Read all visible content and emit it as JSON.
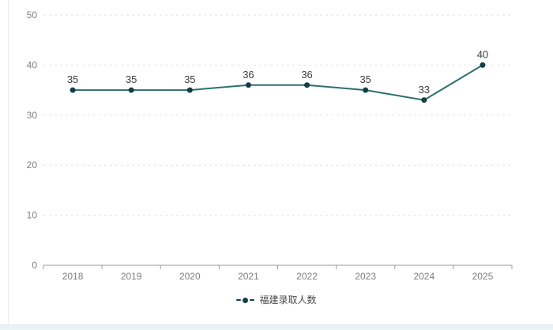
{
  "chart_data": {
    "type": "line",
    "title": "",
    "categories": [
      "2018",
      "2019",
      "2020",
      "2021",
      "2022",
      "2023",
      "2024",
      "2025"
    ],
    "series": [
      {
        "name": "福建录取人数",
        "values": [
          35,
          35,
          35,
          36,
          36,
          35,
          33,
          40
        ]
      }
    ],
    "xlabel": "",
    "ylabel": "",
    "ylim": [
      0,
      50
    ],
    "ytick_interval": 10,
    "yticks": [
      "0",
      "10",
      "20",
      "30",
      "40",
      "50"
    ],
    "grid": "horizontal-dashed",
    "legend_position": "bottom-center",
    "value_labels_shown": true,
    "colors": {
      "line": "#2e6f6f",
      "marker": "#123f46",
      "axis": "#9b9b9b",
      "gridline": "#e2e2e2",
      "value_label": "#3d3d3d",
      "tick_label": "#7f7f7f",
      "legend_text": "#4a4a4a"
    }
  },
  "legend": {
    "label": "福建录取人数"
  },
  "page": {
    "background": "#ffffff",
    "left_border_color": "#ececec",
    "bottom_strip_color": "#e9f2f4"
  }
}
